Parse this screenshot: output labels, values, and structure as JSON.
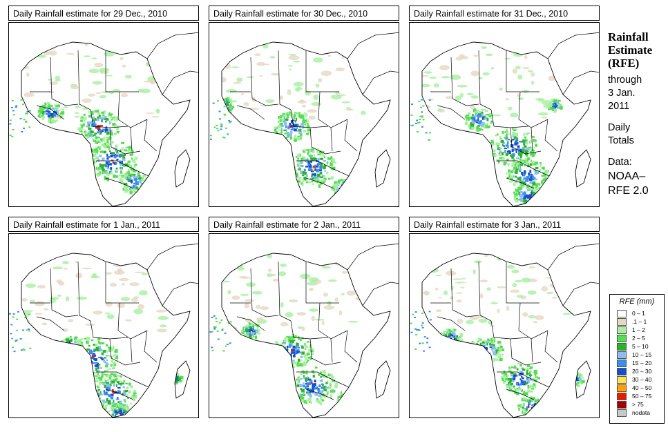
{
  "panels": [
    {
      "title": "Daily Rainfall estimate for  29 Dec., 2010"
    },
    {
      "title": "Daily Rainfall estimate for  30 Dec., 2010"
    },
    {
      "title": "Daily Rainfall estimate for  31 Dec., 2010"
    },
    {
      "title": "Daily Rainfall estimate for  1 Jan., 2011"
    },
    {
      "title": "Daily Rainfall estimate for  2 Jan., 2011"
    },
    {
      "title": "Daily Rainfall estimate for  3 Jan., 2011"
    }
  ],
  "side": {
    "title_line1": "Rainfall",
    "title_line2": "Estimate",
    "title_line3": "(RFE)",
    "through": "through",
    "date_line1": "3 Jan.",
    "date_line2": "2011",
    "daily": "Daily",
    "totals": "Totals",
    "data_label": "Data:",
    "source_line1": "NOAA–",
    "source_line2": "RFE 2.0"
  },
  "legend": {
    "title": "RFE (mm)",
    "items": [
      {
        "label": "0 – 1",
        "color": "#ffffff"
      },
      {
        "label": ".1 – 1",
        "color": "#e6d7c3"
      },
      {
        "label": "1 – 2",
        "color": "#a6f0a0"
      },
      {
        "label": "2 – 5",
        "color": "#56dc56"
      },
      {
        "label": "5 – 10",
        "color": "#28b428"
      },
      {
        "label": "10 – 15",
        "color": "#8cbef0"
      },
      {
        "label": "15 – 20",
        "color": "#3c8cf0"
      },
      {
        "label": "20 – 30",
        "color": "#1450c8"
      },
      {
        "label": "30 – 40",
        "color": "#ffe650"
      },
      {
        "label": "40 – 50",
        "color": "#ffa000"
      },
      {
        "label": "50 – 75",
        "color": "#e61e00"
      },
      {
        "label": "> 75",
        "color": "#a00000"
      },
      {
        "label": "nodata",
        "color": "#c8c8c8"
      }
    ]
  }
}
